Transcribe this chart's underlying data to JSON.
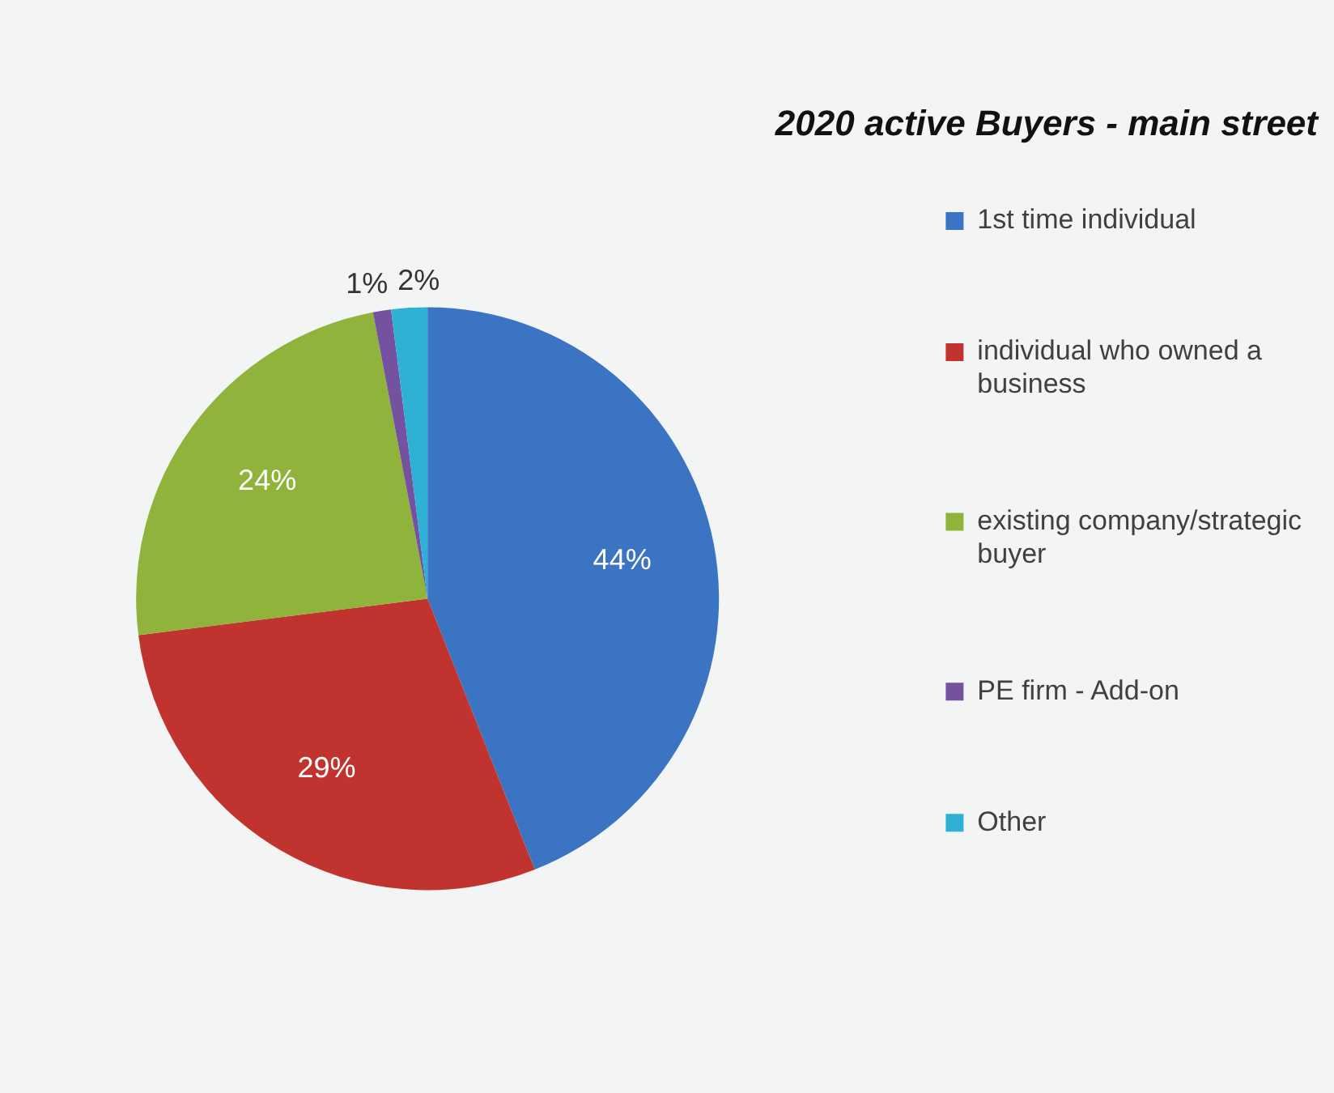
{
  "chart_data": {
    "type": "pie",
    "title": "2020 active Buyers - main street",
    "categories": [
      "1st time individual",
      "individual who owned a business",
      "existing company/strategic buyer",
      "PE firm - Add-on",
      "Other"
    ],
    "values": [
      44,
      29,
      24,
      1,
      2
    ],
    "colors": [
      "#3a74c2",
      "#c1332f",
      "#8fb33b",
      "#7552a0",
      "#2fb1d5"
    ],
    "value_labels": [
      "44%",
      "29%",
      "24%",
      "1%",
      "2%"
    ],
    "legend": "right"
  }
}
